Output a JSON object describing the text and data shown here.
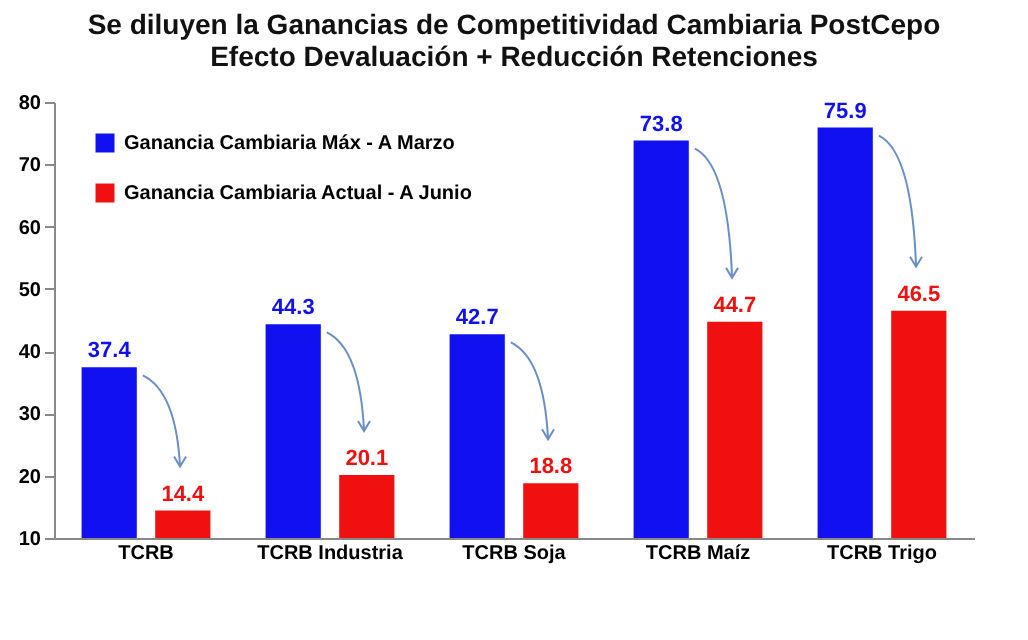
{
  "chart_data": {
    "type": "bar",
    "title": "Se diluyen la Ganancias de Competitividad Cambiaria PostCepo\nEfecto Devaluación + Reducción Retenciones",
    "categories": [
      "TCRB",
      "TCRB Industria",
      "TCRB Soja",
      "TCRB Maíz",
      "TCRB Trigo"
    ],
    "series": [
      {
        "name": "Ganancia Cambiaria Máx - A Marzo",
        "color": "#1010f0",
        "values": [
          37.4,
          44.3,
          42.7,
          73.8,
          75.9
        ]
      },
      {
        "name": "Ganancia Cambiaria Actual - A Junio",
        "color": "#f01010",
        "values": [
          14.4,
          20.1,
          18.8,
          44.7,
          46.5
        ]
      }
    ],
    "ylim": [
      10,
      80
    ],
    "yticks": [
      10,
      20,
      30,
      40,
      50,
      60,
      70,
      80
    ],
    "grid": false,
    "legend": "top left",
    "data_labels": true
  }
}
